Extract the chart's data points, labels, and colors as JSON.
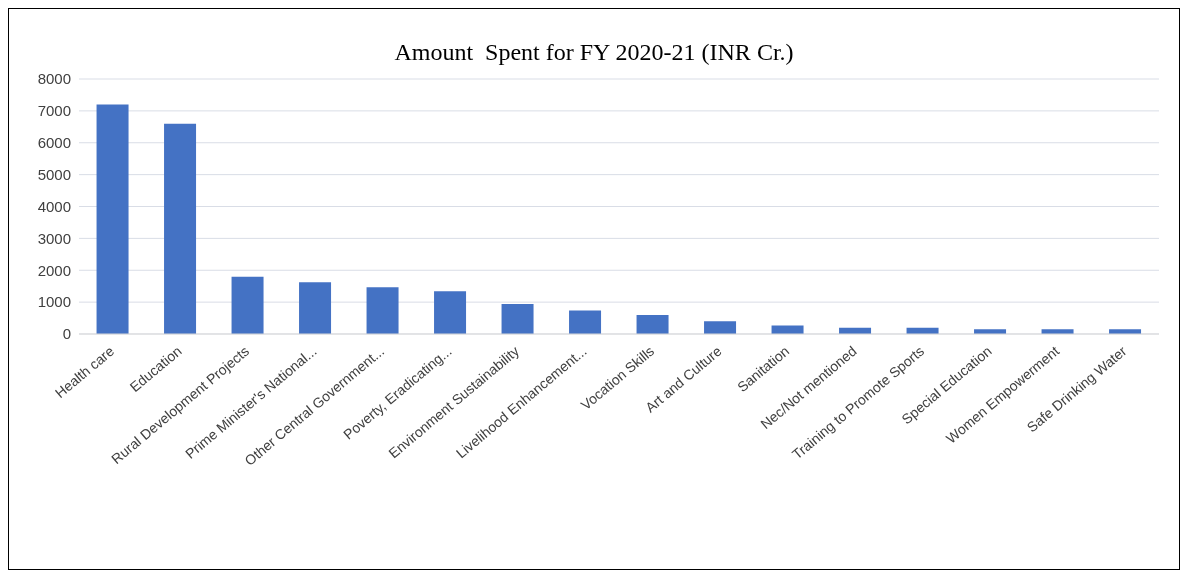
{
  "chart_data": {
    "type": "bar",
    "title": "Amount  Spent for FY 2020-21 (INR Cr.)",
    "categories": [
      "Health care",
      "Education",
      "Rural Development Projects",
      "Prime Minister's National...",
      "Other Central Government...",
      "Poverty, Eradicating...",
      "Environment Sustainability",
      "Livelihood Enhancement...",
      "Vocation Skills",
      "Art and Culture",
      "Sanitation",
      "Nec/Not mentioned",
      "Training to Promote Sports",
      "Special Education",
      "Women Empowerment",
      "Safe Drinking Water"
    ],
    "values": [
      7200,
      6600,
      1800,
      1620,
      1470,
      1340,
      940,
      740,
      600,
      400,
      270,
      200,
      200,
      150,
      150,
      150
    ],
    "color": "#4472c4",
    "ylim": [
      0,
      8000
    ],
    "yticks": [
      0,
      1000,
      2000,
      3000,
      4000,
      5000,
      6000,
      7000,
      8000
    ],
    "grid": "y"
  }
}
